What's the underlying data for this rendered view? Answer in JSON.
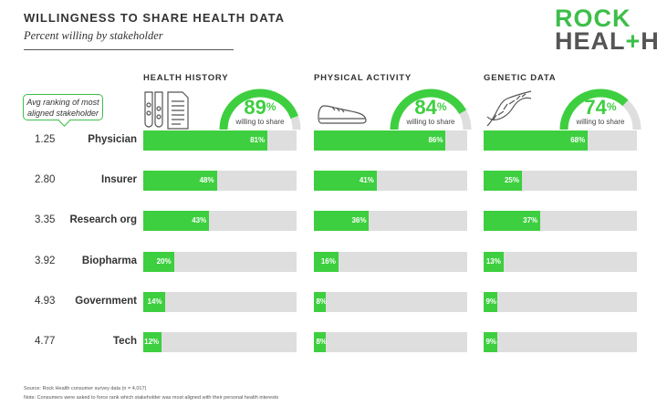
{
  "header": {
    "title": "WILLINGNESS TO SHARE HEALTH DATA",
    "subtitle": "Percent willing by stakeholder"
  },
  "logo": {
    "line1": "ROCK",
    "line2a": "HEAL",
    "line2b": "+",
    "line2c": "H"
  },
  "avg_label": "Avg ranking of most aligned stakeholder",
  "gauge_caption": "willing to share",
  "colors": {
    "bar": "#3dcf3f",
    "track": "#dedede",
    "accent": "#3dbe4a",
    "text": "#333333"
  },
  "icons": [
    "test-tubes-document-icon",
    "sneaker-icon",
    "dna-helix-icon"
  ],
  "footer": {
    "source": "Source: Rock Health consumer survey data (n = 4,017)",
    "note": "Note: Consumers were asked to force rank which stakeholder was most aligned with their personal health interests"
  },
  "chart_data": {
    "type": "bar",
    "title": "WILLINGNESS TO SHARE HEALTH DATA",
    "subtitle": "Percent willing by stakeholder",
    "categories": [
      "Physician",
      "Insurer",
      "Research org",
      "Biopharma",
      "Government",
      "Tech"
    ],
    "avg_ranking": [
      "1.25",
      "2.80",
      "3.35",
      "3.92",
      "4.93",
      "4.77"
    ],
    "ylim": [
      0,
      100
    ],
    "series": [
      {
        "name": "HEALTH HISTORY",
        "overall": 89,
        "overall_label": "89%",
        "values": [
          81,
          48,
          43,
          20,
          14,
          12
        ],
        "labels": [
          "81%",
          "48%",
          "43%",
          "20%",
          "14%",
          "12%"
        ]
      },
      {
        "name": "PHYSICAL ACTIVITY",
        "overall": 84,
        "overall_label": "84%",
        "values": [
          86,
          41,
          36,
          16,
          8,
          8
        ],
        "labels": [
          "86%",
          "41%",
          "36%",
          "16%",
          "8%",
          "8%"
        ]
      },
      {
        "name": "GENETIC DATA",
        "overall": 74,
        "overall_label": "74%",
        "values": [
          68,
          25,
          37,
          13,
          9,
          9
        ],
        "labels": [
          "68%",
          "25%",
          "37%",
          "13%",
          "9%",
          "9%"
        ]
      }
    ]
  }
}
